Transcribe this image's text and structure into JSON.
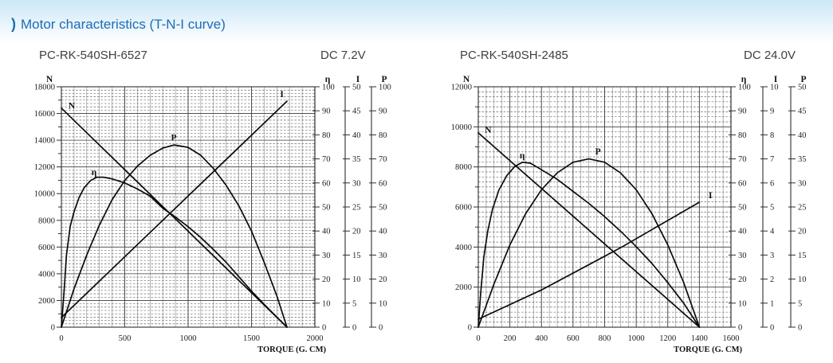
{
  "header": {
    "bracket": ")",
    "title": "Motor characteristics (T-N-I curve)",
    "accent_color": "#1c6cb4",
    "band_color": "#cbe8f7"
  },
  "chart_data": [
    {
      "type": "line",
      "title": "PC-RK-540SH-6527",
      "subtitle": "DC 7.2V",
      "x_axis": {
        "label": "TORQUE (G. CM)",
        "min": 0,
        "max": 2000,
        "label_step": 500,
        "grid_step": 100
      },
      "y_axes": {
        "n": {
          "label": "N",
          "min": 0,
          "max": 18000,
          "label_step": 2000,
          "minor_tick_step": 1000,
          "minor_grid_step": 250
        },
        "eta": {
          "label": "η",
          "min": 0,
          "max": 100,
          "step": 10
        },
        "i": {
          "label": "I",
          "min": 0,
          "max": 50,
          "step": 5
        },
        "p": {
          "label": "P",
          "min": 0,
          "max": 100,
          "step": 10
        }
      },
      "stall_torque": 1780,
      "series": [
        {
          "name": "speed",
          "label": "N",
          "axis": "n",
          "label_pos": [
            82,
            16600
          ],
          "points": [
            [
              0,
              16400
            ],
            [
              1780,
              0
            ]
          ]
        },
        {
          "name": "efficiency",
          "label": "η",
          "axis": "eta",
          "label_pos": [
            258,
            64.5
          ],
          "points": [
            [
              0,
              0
            ],
            [
              20,
              14
            ],
            [
              40,
              30
            ],
            [
              70,
              42
            ],
            [
              100,
              48
            ],
            [
              140,
              54
            ],
            [
              180,
              58
            ],
            [
              230,
              61
            ],
            [
              280,
              62.4
            ],
            [
              330,
              62.4
            ],
            [
              400,
              61.7
            ],
            [
              500,
              60
            ],
            [
              600,
              57.5
            ],
            [
              700,
              54.5
            ],
            [
              800,
              49.5
            ],
            [
              900,
              45.8
            ],
            [
              1000,
              41.8
            ],
            [
              1100,
              37.3
            ],
            [
              1200,
              32.3
            ],
            [
              1300,
              27
            ],
            [
              1400,
              21
            ],
            [
              1500,
              15
            ],
            [
              1600,
              9.5
            ],
            [
              1700,
              4.2
            ],
            [
              1780,
              0
            ]
          ]
        },
        {
          "name": "power",
          "label": "P",
          "axis": "p",
          "label_pos": [
            887,
            79
          ],
          "points": [
            [
              0,
              0
            ],
            [
              100,
              16
            ],
            [
              200,
              30
            ],
            [
              300,
              42.5
            ],
            [
              400,
              53
            ],
            [
              500,
              61
            ],
            [
              600,
              67
            ],
            [
              700,
              71.5
            ],
            [
              800,
              74.5
            ],
            [
              890,
              75.8
            ],
            [
              1000,
              74.8
            ],
            [
              1100,
              71.5
            ],
            [
              1200,
              66
            ],
            [
              1300,
              59
            ],
            [
              1400,
              50.5
            ],
            [
              1500,
              40
            ],
            [
              1600,
              27
            ],
            [
              1700,
              13
            ],
            [
              1780,
              0
            ]
          ]
        },
        {
          "name": "current",
          "label": "I",
          "axis": "i",
          "label_pos": [
            1740,
            48.5
          ],
          "points": [
            [
              0,
              2
            ],
            [
              1780,
              47
            ]
          ]
        }
      ]
    },
    {
      "type": "line",
      "title": "PC-RK-540SH-2485",
      "subtitle": "DC 24.0V",
      "x_axis": {
        "label": "TORQUE (G. CM)",
        "min": 0,
        "max": 1600,
        "label_step": 200,
        "grid_step": 50
      },
      "y_axes": {
        "n": {
          "label": "N",
          "min": 0,
          "max": 12000,
          "label_step": 2000,
          "minor_tick_step": 1000,
          "minor_grid_step": 250
        },
        "eta": {
          "label": "η",
          "min": 0,
          "max": 100,
          "step": 10
        },
        "i": {
          "label": "I",
          "min": 0,
          "max": 10,
          "step": 1
        },
        "p": {
          "label": "P",
          "min": 0,
          "max": 50,
          "step": 5
        }
      },
      "stall_torque": 1400,
      "series": [
        {
          "name": "speed",
          "label": "N",
          "axis": "n",
          "label_pos": [
            62,
            9850
          ],
          "points": [
            [
              0,
              9700
            ],
            [
              1400,
              0
            ]
          ]
        },
        {
          "name": "efficiency",
          "label": "η",
          "axis": "eta",
          "label_pos": [
            278,
            71.5
          ],
          "points": [
            [
              0,
              0
            ],
            [
              15,
              14
            ],
            [
              35,
              29
            ],
            [
              60,
              40
            ],
            [
              90,
              49
            ],
            [
              130,
              57
            ],
            [
              180,
              63
            ],
            [
              230,
              66.8
            ],
            [
              280,
              68.6
            ],
            [
              330,
              68.2
            ],
            [
              400,
              65.5
            ],
            [
              500,
              61.5
            ],
            [
              600,
              56.5
            ],
            [
              700,
              51.5
            ],
            [
              800,
              46
            ],
            [
              900,
              40
            ],
            [
              1000,
              33.5
            ],
            [
              1100,
              26.5
            ],
            [
              1200,
              18.5
            ],
            [
              1300,
              10
            ],
            [
              1400,
              0
            ]
          ]
        },
        {
          "name": "power",
          "label": "P",
          "axis": "p",
          "label_pos": [
            758,
            36.6
          ],
          "points": [
            [
              0,
              0
            ],
            [
              100,
              9
            ],
            [
              200,
              17.1
            ],
            [
              300,
              23.6
            ],
            [
              400,
              28.6
            ],
            [
              500,
              32.1
            ],
            [
              600,
              34.3
            ],
            [
              700,
              35
            ],
            [
              800,
              34.3
            ],
            [
              900,
              32.1
            ],
            [
              1000,
              28.6
            ],
            [
              1100,
              23.6
            ],
            [
              1200,
              17.1
            ],
            [
              1300,
              9.3
            ],
            [
              1400,
              0
            ]
          ]
        },
        {
          "name": "current",
          "label": "I",
          "axis": "i",
          "label_pos": [
            1470,
            5.5
          ],
          "points": [
            [
              0,
              0.33
            ],
            [
              400,
              1.55
            ],
            [
              900,
              3.3
            ],
            [
              1400,
              5.2
            ]
          ]
        }
      ]
    }
  ]
}
